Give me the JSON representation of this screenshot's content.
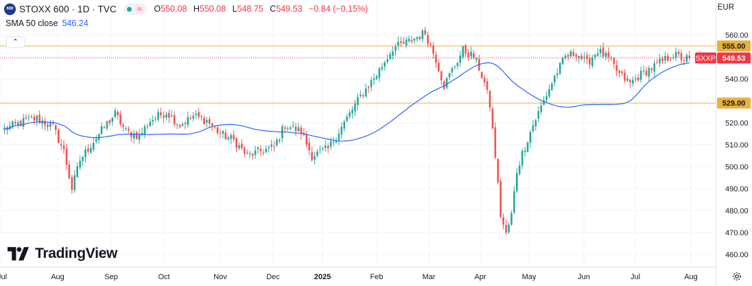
{
  "header": {
    "badge": "600",
    "symbol": "STOXX 600 · 1D · TVC",
    "ohlc": [
      {
        "k": "O",
        "v": "550.08"
      },
      {
        "k": "H",
        "v": "550.08"
      },
      {
        "k": "L",
        "v": "548.75"
      },
      {
        "k": "C",
        "v": "549.53"
      }
    ],
    "change": "−0.84 (−0.15%)",
    "status_icon": "market-closed-dot",
    "wave_icon": "≈"
  },
  "indicator": {
    "label": "SMA 50 close",
    "value": "546.24"
  },
  "currency": "EUR",
  "logo_text": "TradingView",
  "colors": {
    "up": "#26a69a",
    "down": "#ef5350",
    "sma": "#2962ff",
    "hline": "#e8b33a",
    "last": "#f23645",
    "grid": "#f0f3fa"
  },
  "chart_data": {
    "type": "candlestick",
    "title": "STOXX 600",
    "ylim": [
      456,
      568
    ],
    "yticks": [
      460,
      470,
      480,
      490,
      500,
      510,
      520,
      530,
      540,
      550,
      560
    ],
    "x_tick_labels": [
      "Jul",
      "Aug",
      "Sep",
      "Oct",
      "Nov",
      "Dec",
      "2025",
      "Feb",
      "Mar",
      "Apr",
      "May",
      "Jun",
      "Jul",
      "Aug"
    ],
    "x_tick_bold": [
      false,
      false,
      false,
      false,
      false,
      false,
      true,
      false,
      false,
      false,
      false,
      false,
      false,
      false
    ],
    "anchors": [
      [
        0,
        517
      ],
      [
        8,
        521
      ],
      [
        12,
        522
      ],
      [
        18,
        518
      ],
      [
        22,
        507
      ],
      [
        25,
        490
      ],
      [
        28,
        503
      ],
      [
        32,
        510
      ],
      [
        37,
        518
      ],
      [
        41,
        524
      ],
      [
        45,
        516
      ],
      [
        50,
        514
      ],
      [
        54,
        521
      ],
      [
        60,
        525
      ],
      [
        65,
        519
      ],
      [
        70,
        523
      ],
      [
        75,
        521
      ],
      [
        80,
        515
      ],
      [
        85,
        512
      ],
      [
        90,
        505
      ],
      [
        95,
        507
      ],
      [
        100,
        509
      ],
      [
        104,
        519
      ],
      [
        110,
        516
      ],
      [
        114,
        505
      ],
      [
        120,
        508
      ],
      [
        126,
        520
      ],
      [
        132,
        532
      ],
      [
        138,
        542
      ],
      [
        144,
        554
      ],
      [
        150,
        557
      ],
      [
        156,
        561
      ],
      [
        160,
        549
      ],
      [
        163,
        537
      ],
      [
        166,
        544
      ],
      [
        170,
        553
      ],
      [
        174,
        550
      ],
      [
        176,
        545
      ],
      [
        178,
        538
      ],
      [
        180,
        528
      ],
      [
        182,
        505
      ],
      [
        184,
        478
      ],
      [
        186,
        469
      ],
      [
        188,
        478
      ],
      [
        190,
        498
      ],
      [
        192,
        506
      ],
      [
        196,
        519
      ],
      [
        200,
        530
      ],
      [
        204,
        541
      ],
      [
        208,
        550
      ],
      [
        212,
        552
      ],
      [
        216,
        547
      ],
      [
        220,
        553
      ],
      [
        224,
        549
      ],
      [
        228,
        542
      ],
      [
        232,
        538
      ],
      [
        236,
        542
      ],
      [
        240,
        545
      ],
      [
        244,
        548
      ],
      [
        248,
        551
      ],
      [
        252,
        549
      ],
      [
        254,
        549.53
      ]
    ],
    "sma": {
      "name": "SMA 50 close",
      "last": "546.24"
    },
    "hlines": [
      {
        "value": 555.0,
        "label": "555.00"
      },
      {
        "value": 529.0,
        "label": "529.00"
      }
    ],
    "last_price": {
      "value": 549.53,
      "label": "549.53",
      "tag": "SXXP"
    }
  }
}
